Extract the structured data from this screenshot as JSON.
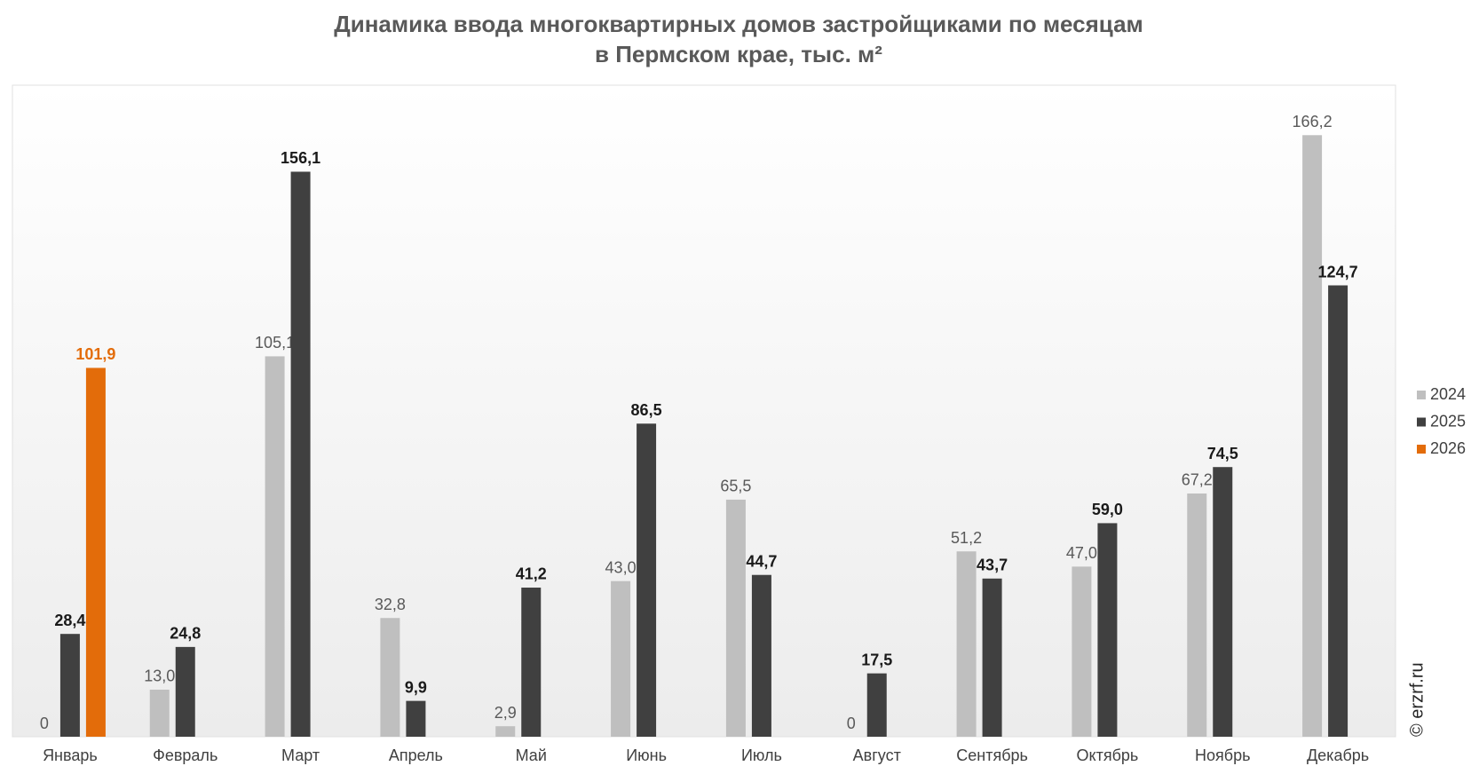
{
  "chart_data": {
    "type": "bar",
    "title": "Динамика ввода многоквартирных домов застройщиками по месяцам",
    "subtitle": "в Пермском крае, тыс. м²",
    "annotation": "© erzrf.ru",
    "categories": [
      "Январь",
      "Февраль",
      "Март",
      "Апрель",
      "Май",
      "Июнь",
      "Июль",
      "Август",
      "Сентябрь",
      "Октябрь",
      "Ноябрь",
      "Декабрь"
    ],
    "series": [
      {
        "name": "2024",
        "color": "#bfbfbf",
        "label_color": "#595959",
        "values": [
          0,
          13.0,
          105.1,
          32.8,
          2.9,
          43.0,
          65.5,
          0,
          51.2,
          47.0,
          67.2,
          166.2
        ],
        "value_labels": [
          "0",
          "13,0",
          "105,1",
          "32,8",
          "2,9",
          "43,0",
          "65,5",
          "0",
          "51,2",
          "47,0",
          "67,2",
          "166,2"
        ]
      },
      {
        "name": "2025",
        "color": "#404040",
        "label_color": "#1a1a1a",
        "values": [
          28.4,
          24.8,
          156.1,
          9.9,
          41.2,
          86.5,
          44.7,
          17.5,
          43.7,
          59.0,
          74.5,
          124.7
        ],
        "value_labels": [
          "28,4",
          "24,8",
          "156,1",
          "9,9",
          "41,2",
          "86,5",
          "44,7",
          "17,5",
          "43,7",
          "59,0",
          "74,5",
          "124,7"
        ]
      },
      {
        "name": "2026",
        "color": "#e36c0a",
        "label_color": "#e36c0a",
        "values": [
          101.9,
          null,
          null,
          null,
          null,
          null,
          null,
          null,
          null,
          null,
          null,
          null
        ],
        "value_labels": [
          "101,9",
          null,
          null,
          null,
          null,
          null,
          null,
          null,
          null,
          null,
          null,
          null
        ]
      }
    ],
    "ylim": [
      0,
      180
    ],
    "grid": false,
    "legend": "right"
  }
}
